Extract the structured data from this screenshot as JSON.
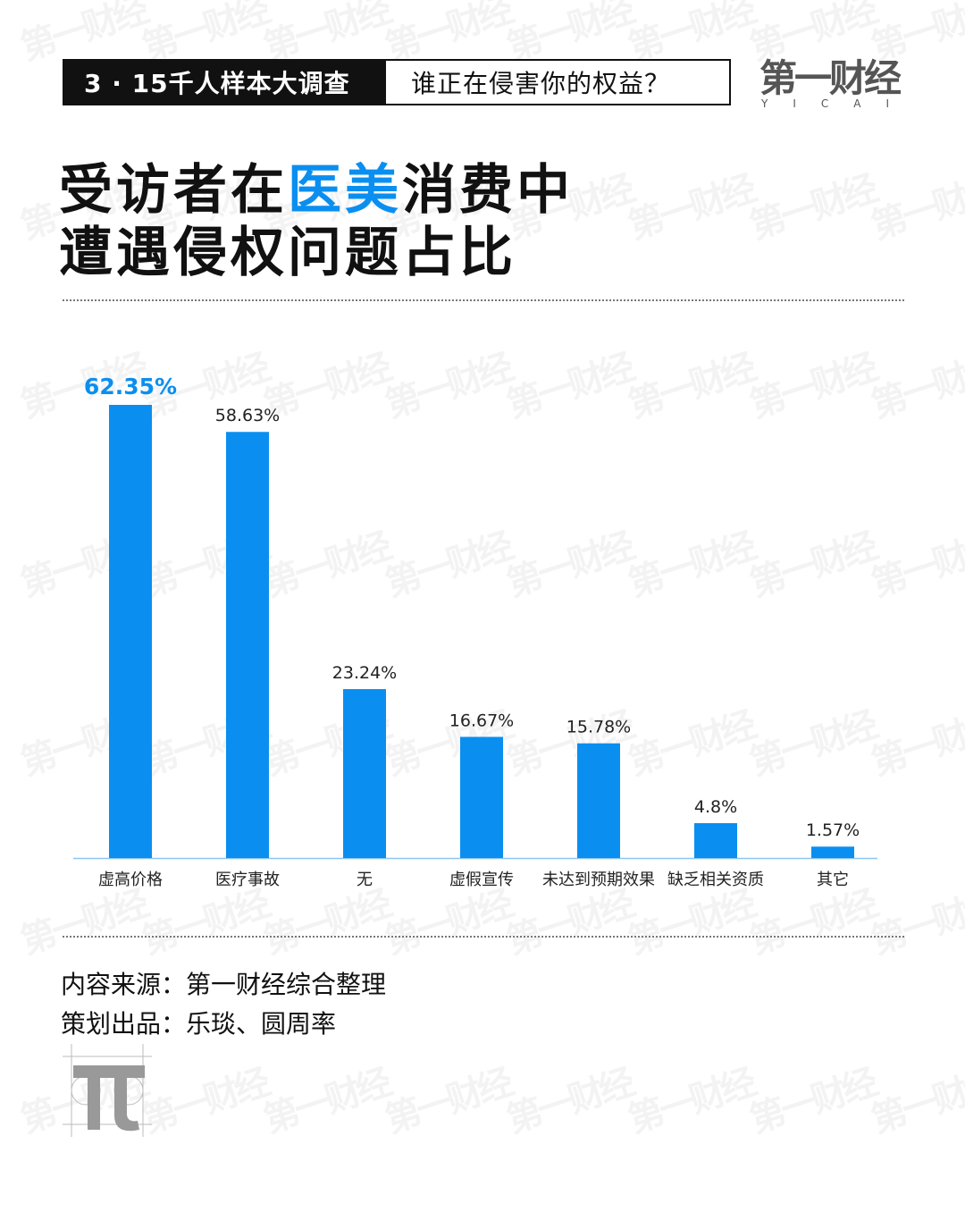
{
  "header": {
    "series_label": "3 · 15千人样本大调查",
    "question": "谁正在侵害你的权益？",
    "logo_text": "第一财经",
    "logo_sub": "YICAI"
  },
  "title": {
    "line1_prefix": "受访者在",
    "line1_highlight": "医美",
    "line1_suffix": "消费中",
    "line2": "遭遇侵权问题占比"
  },
  "colors": {
    "bar": "#0a8ff0",
    "highlight": "#0a8ff0",
    "axis": "#8cc6f2"
  },
  "chart_data": {
    "type": "bar",
    "categories": [
      "虚高价格",
      "医疗事故",
      "无",
      "虚假宣传",
      "未达到预期效果",
      "缺乏相关资质",
      "其它"
    ],
    "values": [
      62.35,
      58.63,
      23.24,
      16.67,
      15.78,
      4.8,
      1.57
    ],
    "value_labels": [
      "62.35%",
      "58.63%",
      "23.24%",
      "16.67%",
      "15.78%",
      "4.8%",
      "1.57%"
    ],
    "highlight_index": 0,
    "ylim": [
      0,
      62.35
    ],
    "grid": false,
    "title": "",
    "xlabel": "",
    "ylabel": ""
  },
  "footer": {
    "source": "内容来源：第一财经综合整理",
    "produced": "策划出品：乐琰、圆周率"
  },
  "watermark": "第一财经",
  "pi_icon": "pi-logo-icon"
}
